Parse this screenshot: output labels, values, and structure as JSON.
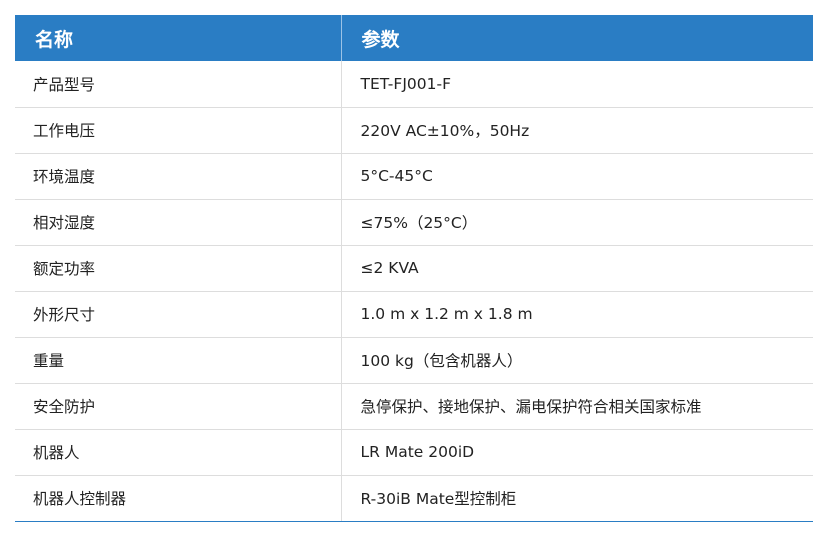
{
  "header": {
    "name": "名称",
    "param": "参数"
  },
  "header_color": "#2a7dc4",
  "rows": [
    {
      "name": "产品型号",
      "value": "TET-FJ001-F"
    },
    {
      "name": "工作电压",
      "value": "220V AC±10%，50Hz"
    },
    {
      "name": "环境温度",
      "value": "5°C-45°C"
    },
    {
      "name": "相对湿度",
      "value": "≤75%（25°C）"
    },
    {
      "name": "额定功率",
      "value": "≤2 KVA"
    },
    {
      "name": "外形尺寸",
      "value": "1.0 m x 1.2 m x 1.8 m"
    },
    {
      "name": "重量",
      "value": "100 kg（包含机器人）"
    },
    {
      "name": "安全防护",
      "value": "急停保护、接地保护、漏电保护符合相关国家标准"
    },
    {
      "name": "机器人",
      "value": "LR Mate 200iD"
    },
    {
      "name": "机器人控制器",
      "value": "R-30iB Mate型控制柜"
    }
  ]
}
